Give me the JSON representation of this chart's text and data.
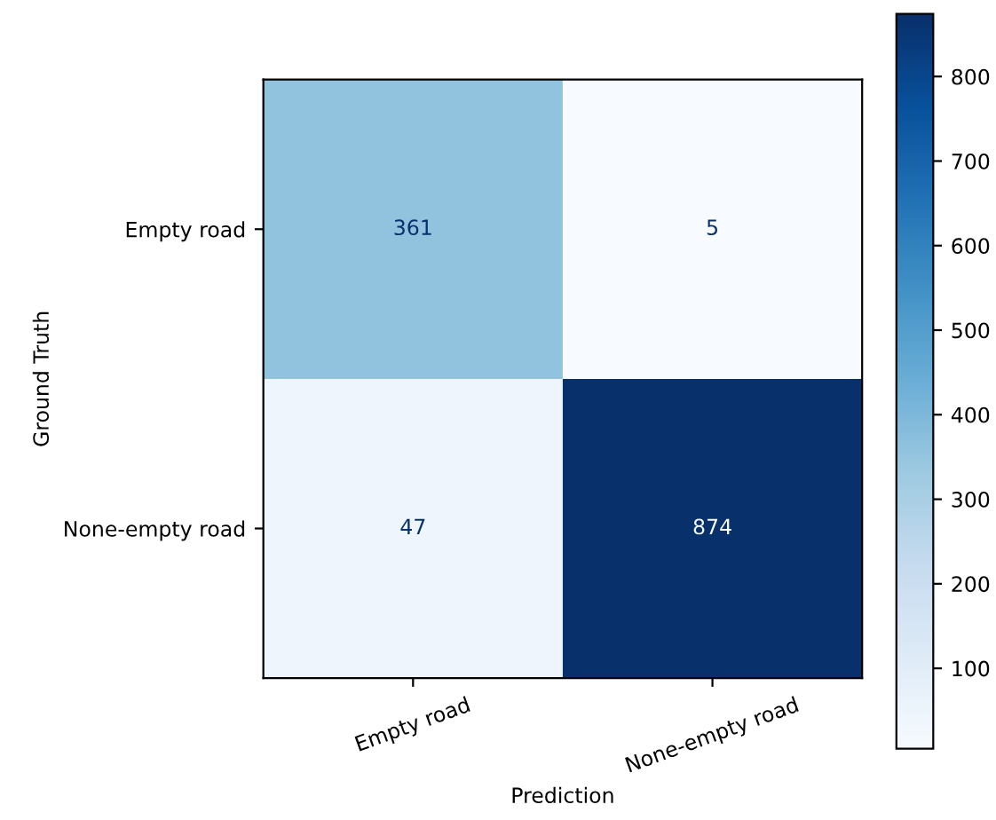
{
  "chart_data": {
    "type": "heatmap",
    "xlabel": "Prediction",
    "ylabel": "Ground Truth",
    "categories": [
      "Empty road",
      "None-empty road"
    ],
    "y_categories": [
      "Empty road",
      "None-empty road"
    ],
    "cells": [
      [
        361,
        5
      ],
      [
        47,
        874
      ]
    ],
    "data_labels": true,
    "clim": [
      5,
      874
    ],
    "cticks": [
      100,
      200,
      300,
      400,
      500,
      600,
      700,
      800
    ],
    "grid": false
  }
}
